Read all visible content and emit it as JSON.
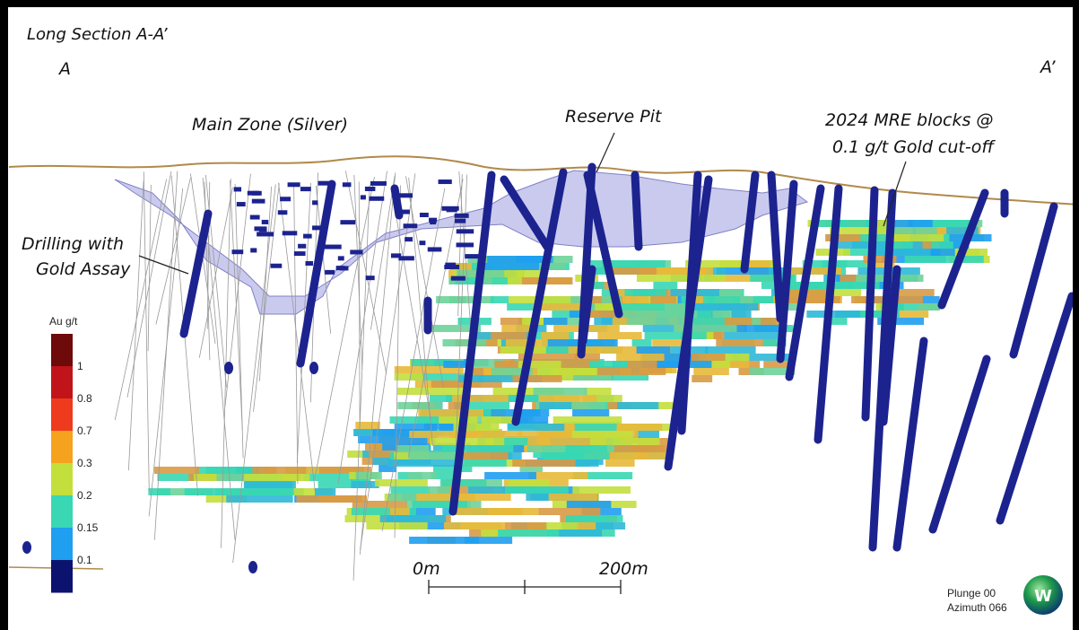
{
  "title": "Long Section A-A’",
  "section_ends": {
    "left": "A",
    "right": "A’"
  },
  "annotations": {
    "main_zone": "Main Zone (Silver)",
    "reserve_pit": "Reserve Pit",
    "mre_blocks": [
      "2024 MRE blocks @",
      "0.1 g/t Gold cut-off"
    ],
    "drilling": [
      "Drilling with",
      "Gold Assay"
    ]
  },
  "legend": {
    "title": "Au g/t",
    "colors": [
      "#6e0a0a",
      "#c0141a",
      "#ef3b1d",
      "#f5a21f",
      "#c3df3c",
      "#39d7b3",
      "#1f9ff0",
      "#0b136f"
    ],
    "labels": [
      "1",
      "0.8",
      "0.7",
      "0.3",
      "0.2",
      "0.15",
      "0.1"
    ]
  },
  "scale_bar": {
    "start": "0m",
    "end": "200m"
  },
  "view": {
    "plunge": "Plunge 00",
    "azimuth": "Azimuth 066",
    "logo": "W"
  }
}
